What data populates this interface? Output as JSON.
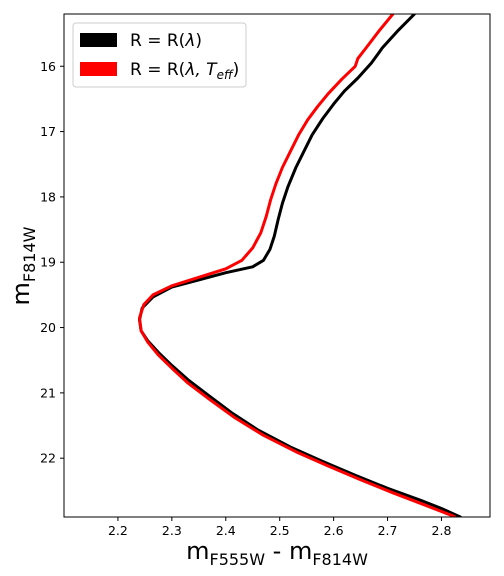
{
  "chart_data": {
    "type": "line",
    "xlabel_main": "m",
    "xlabel_sub1": "F555W",
    "xlabel_sep": " - m",
    "xlabel_sub2": "F814W",
    "ylabel_main": "m",
    "ylabel_sub": "F814W",
    "xlim": [
      2.1,
      2.89
    ],
    "ylim": [
      22.9,
      15.2
    ],
    "y_inverted": true,
    "xticks": [
      2.2,
      2.3,
      2.4,
      2.5,
      2.6,
      2.7,
      2.8
    ],
    "xtick_labels": [
      "2.2",
      "2.3",
      "2.4",
      "2.5",
      "2.6",
      "2.7",
      "2.8"
    ],
    "yticks": [
      16,
      17,
      18,
      19,
      20,
      21,
      22
    ],
    "ytick_labels": [
      "16",
      "17",
      "18",
      "19",
      "20",
      "21",
      "22"
    ],
    "grid": false,
    "legend_position": "top-left",
    "series": [
      {
        "name": "R = R(λ)",
        "color": "#000000",
        "points": [
          [
            2.75,
            15.2
          ],
          [
            2.72,
            15.45
          ],
          [
            2.69,
            15.72
          ],
          [
            2.685,
            15.78
          ],
          [
            2.67,
            15.95
          ],
          [
            2.645,
            16.18
          ],
          [
            2.62,
            16.38
          ],
          [
            2.6,
            16.58
          ],
          [
            2.58,
            16.8
          ],
          [
            2.56,
            17.05
          ],
          [
            2.545,
            17.3
          ],
          [
            2.53,
            17.55
          ],
          [
            2.515,
            17.85
          ],
          [
            2.505,
            18.1
          ],
          [
            2.497,
            18.35
          ],
          [
            2.49,
            18.6
          ],
          [
            2.482,
            18.8
          ],
          [
            2.47,
            18.97
          ],
          [
            2.45,
            19.07
          ],
          [
            2.4,
            19.16
          ],
          [
            2.35,
            19.27
          ],
          [
            2.3,
            19.38
          ],
          [
            2.265,
            19.53
          ],
          [
            2.245,
            19.7
          ],
          [
            2.24,
            19.88
          ],
          [
            2.243,
            20.05
          ],
          [
            2.255,
            20.2
          ],
          [
            2.275,
            20.38
          ],
          [
            2.3,
            20.58
          ],
          [
            2.33,
            20.8
          ],
          [
            2.365,
            21.02
          ],
          [
            2.41,
            21.3
          ],
          [
            2.46,
            21.57
          ],
          [
            2.52,
            21.83
          ],
          [
            2.58,
            22.05
          ],
          [
            2.64,
            22.26
          ],
          [
            2.7,
            22.46
          ],
          [
            2.76,
            22.64
          ],
          [
            2.8,
            22.77
          ],
          [
            2.835,
            22.9
          ]
        ]
      },
      {
        "name": "R = R(λ, T_eff)",
        "color": "#ff0000",
        "points": [
          [
            2.71,
            15.2
          ],
          [
            2.685,
            15.45
          ],
          [
            2.66,
            15.72
          ],
          [
            2.645,
            15.88
          ],
          [
            2.64,
            16.0
          ],
          [
            2.615,
            16.2
          ],
          [
            2.59,
            16.42
          ],
          [
            2.57,
            16.62
          ],
          [
            2.552,
            16.82
          ],
          [
            2.535,
            17.05
          ],
          [
            2.52,
            17.3
          ],
          [
            2.505,
            17.55
          ],
          [
            2.493,
            17.8
          ],
          [
            2.483,
            18.05
          ],
          [
            2.475,
            18.3
          ],
          [
            2.465,
            18.55
          ],
          [
            2.45,
            18.78
          ],
          [
            2.43,
            18.97
          ],
          [
            2.4,
            19.1
          ],
          [
            2.35,
            19.23
          ],
          [
            2.3,
            19.36
          ],
          [
            2.265,
            19.5
          ],
          [
            2.248,
            19.65
          ],
          [
            2.24,
            19.85
          ],
          [
            2.243,
            20.05
          ],
          [
            2.255,
            20.22
          ],
          [
            2.275,
            20.42
          ],
          [
            2.3,
            20.62
          ],
          [
            2.33,
            20.85
          ],
          [
            2.37,
            21.1
          ],
          [
            2.415,
            21.37
          ],
          [
            2.47,
            21.65
          ],
          [
            2.53,
            21.9
          ],
          [
            2.59,
            22.12
          ],
          [
            2.65,
            22.33
          ],
          [
            2.71,
            22.53
          ],
          [
            2.77,
            22.72
          ],
          [
            2.82,
            22.88
          ],
          [
            2.825,
            22.9
          ]
        ]
      }
    ],
    "legend": [
      {
        "label_main": "R = R(",
        "label_lambda": "λ",
        "label_close": ")",
        "color": "#000000"
      },
      {
        "label_main": "R = R(",
        "label_lambda": "λ, T",
        "label_sub": "eff",
        "label_close": ")",
        "color": "#ff0000"
      }
    ]
  }
}
